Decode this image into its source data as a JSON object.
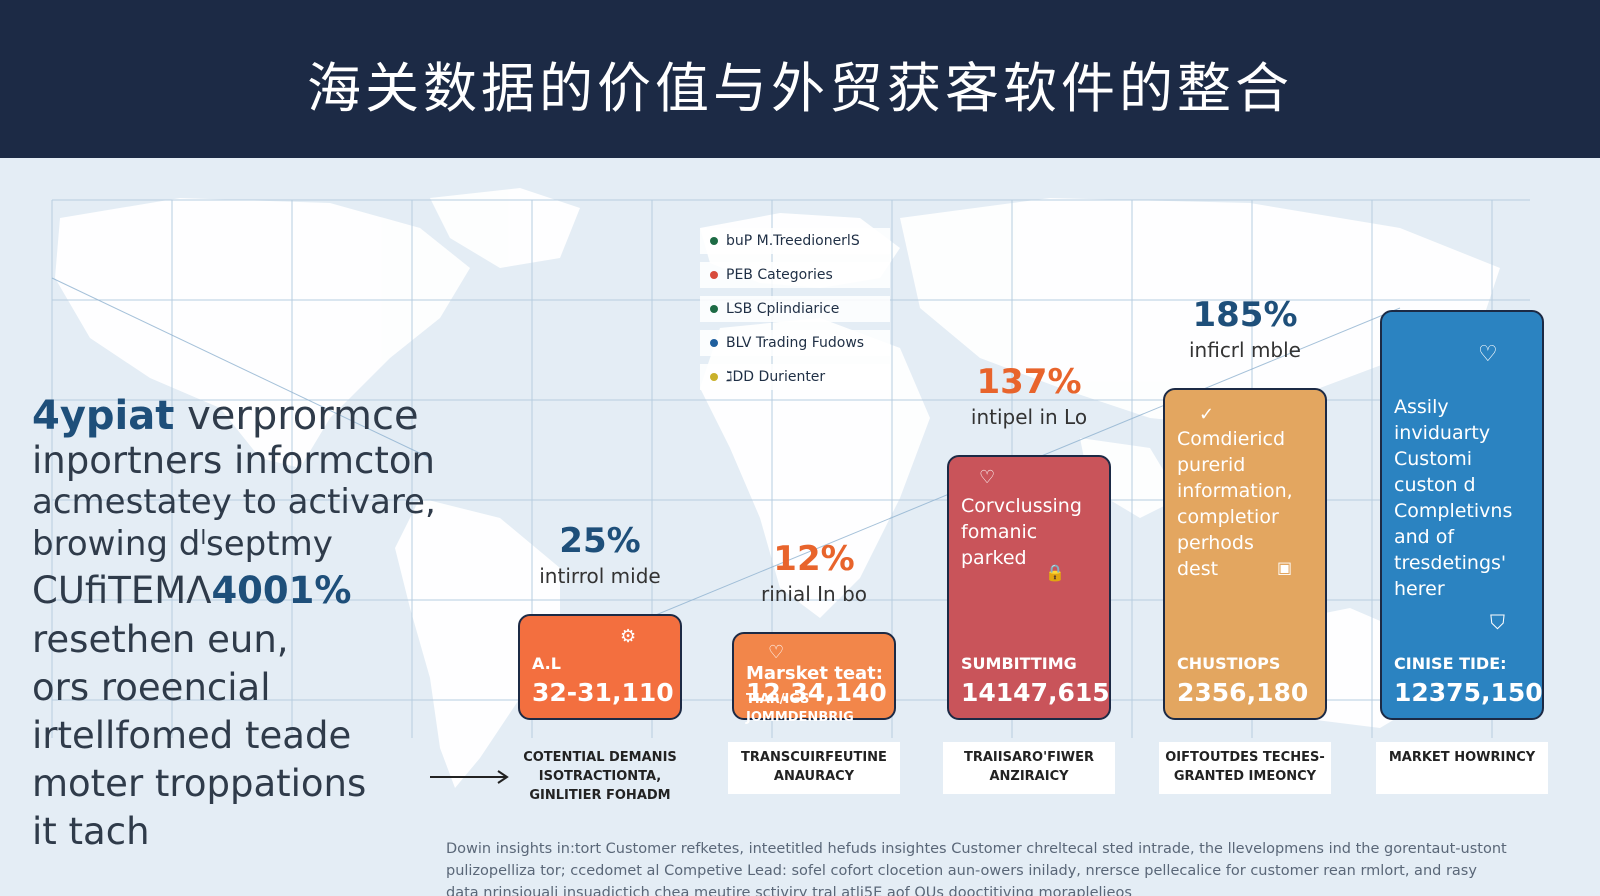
{
  "header": {
    "title": "海关数据的价值与外贸获客软件的整合"
  },
  "legend": [
    {
      "label": "buP  M.TreedionerlS",
      "color": "#1d6b45"
    },
    {
      "label": "PEB  Categories",
      "color": "#d84b3c"
    },
    {
      "label": "LSB  Cplindiarice",
      "color": "#1d6b45"
    },
    {
      "label": "BLV  Trading Fudows",
      "color": "#1f5f9e"
    },
    {
      "label": "ℷDD  Durienter",
      "color": "#c9b12a"
    }
  ],
  "left_text": {
    "line1_strong": "4ypiat",
    "line1_rest": " verprormce",
    "line2": "inportners informcton",
    "line3": "acmestatey to activare,",
    "line4": "browing dˡseptmy",
    "line5_part": "CUﬁTEΜΛ",
    "line5_strong": "4001%",
    "line6": "resethen eun,",
    "line7": "ors roeencial",
    "line8": "irtellfomed teade",
    "line9": "moter troppations",
    "line10": "it tach"
  },
  "chart_data": {
    "type": "bar",
    "categories": [
      "COTENTIAL DEMANIS ISOTRACTIONTA, GINLITIER FOHADM",
      "TRANSCUIRFEUTINE ANAURACY",
      "TRAIISARO'FIWER ANZIRAICY",
      "OIFTOUTDES TECHES- GRANTED IMEONCY",
      "MARKET HOWRINCY"
    ],
    "percent_labels": [
      "25%",
      "12%",
      "137%",
      "185%",
      ""
    ],
    "sub_labels": [
      "intirrol mide",
      "rinial In bo",
      "intipel in Lo",
      "inficrl mble",
      ""
    ],
    "values": [
      25,
      12,
      137,
      185,
      240
    ],
    "bars": [
      {
        "color": "#f36f3f",
        "pct_color": "#1e4f7a",
        "icon": "gear-icon",
        "icon_glyph": "⚙",
        "desc": [],
        "label": "A.L",
        "value": "32-31,110"
      },
      {
        "color": "#f2864a",
        "pct_color": "#e8642c",
        "icon": "heart-icon",
        "icon_glyph": "♡",
        "desc": [],
        "label": "Marsket teat:",
        "label2": "TIAR/IGS",
        "label3": "JOMMDENBRIG",
        "value": "12.34,140"
      },
      {
        "color": "#c9545a",
        "pct_color": "#e8642c",
        "icon": "heart-icon",
        "icon_glyph": "♡",
        "icon2": "lock-icon",
        "icon2_glyph": "🔒",
        "desc": [
          "Corvclussing",
          "fomanic",
          "parked"
        ],
        "label": "SUMBITTIMG",
        "value": "14147,615"
      },
      {
        "color": "#e3a660",
        "pct_color": "#1e4f7a",
        "icon": "check-icon",
        "icon_glyph": "✓",
        "icon2": "box-icon",
        "icon2_glyph": "▣",
        "desc": [
          "Comdiericd",
          "purerid",
          "information,",
          "completior",
          "perhods",
          "dest"
        ],
        "label": "CHUSTIOPS",
        "value": "2356,180"
      },
      {
        "color": "#2b83c1",
        "pct_color": "#1e4f7a",
        "icon": "heart-icon",
        "icon_glyph": "♡",
        "icon2": "gift-icon",
        "icon2_glyph": "⛉",
        "desc": [
          "Assily",
          "inviduarty",
          "Customi",
          "custon d",
          "Completivns",
          "and of",
          "tresdetings'",
          "herer"
        ],
        "label": "CINISE TIDE:",
        "value": "12375,150"
      }
    ],
    "ylim": [
      0,
      240
    ]
  },
  "footer": {
    "line1": "Dowin insights in:tort Customer refketes, inteetitled hefuds insightes Customer chreltecal sted intrade, the llevelopmens ind the gorentaut-ustont",
    "line2": "pulizopelliza tor; ccedomet al Competive Lead: sofel cofort clocetion aun-owers inilady, nrersce pellecalice for customer rean rmlort, and rasy",
    "line3": "data nrinsiouali insuadictich chea meutire sctiviry tral atli5E aof QUs dooctitiving moraplelieos"
  },
  "colors": {
    "header_bg": "#1c2a45",
    "map_bg": "#e4edf5",
    "land": "#ffffff",
    "grid": "#b7cde0"
  }
}
